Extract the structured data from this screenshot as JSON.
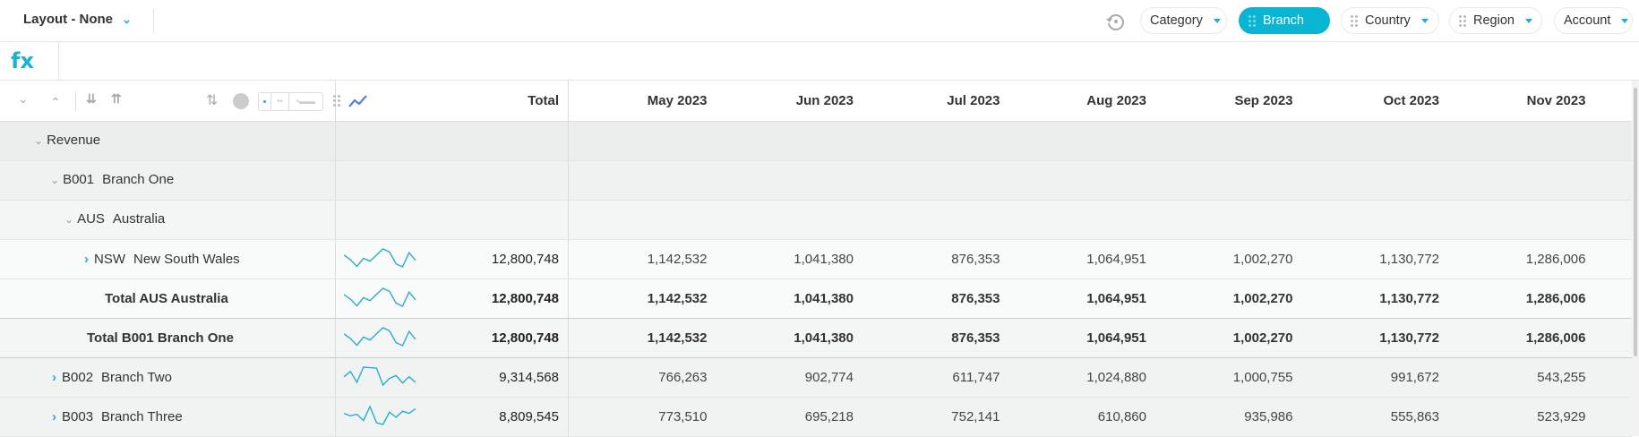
{
  "toolbar": {
    "layout_label": "Layout - None",
    "filters": [
      {
        "label": "Category",
        "active": false,
        "draggable": false
      },
      {
        "label": "Branch",
        "active": true,
        "draggable": true
      },
      {
        "label": "Country",
        "active": false,
        "draggable": true
      },
      {
        "label": "Region",
        "active": false,
        "draggable": true
      },
      {
        "label": "Account",
        "active": false,
        "draggable": false
      }
    ]
  },
  "formula_bar": {
    "icon": "fx",
    "value": ""
  },
  "colors": {
    "accent": "#0ab4d3",
    "sparkline": "#2aaccc"
  },
  "grid": {
    "header": {
      "total": "Total",
      "months": [
        "May 2023",
        "Jun 2023",
        "Jul 2023",
        "Aug 2023",
        "Sep 2023",
        "Oct 2023",
        "Nov 2023"
      ]
    },
    "rows": [
      {
        "code": "",
        "name": "Revenue",
        "type": "group",
        "expanded": true,
        "indent": 0
      },
      {
        "code": "B001",
        "name": "Branch One",
        "type": "group",
        "expanded": true,
        "indent": 1
      },
      {
        "code": "AUS",
        "name": "Australia",
        "type": "group",
        "expanded": true,
        "indent": 2
      },
      {
        "code": "NSW",
        "name": "New South Wales",
        "type": "leaf",
        "expanded": false,
        "indent": 3,
        "total": "12,800,748",
        "values": [
          "1,142,532",
          "1,041,380",
          "876,353",
          "1,064,951",
          "1,002,270",
          "1,130,772",
          "1,286,006"
        ],
        "sparkline": [
          0.66,
          0.4,
          0.02,
          0.48,
          0.31,
          0.66,
          1,
          0.83,
          0.17,
          0,
          0.79,
          0.36
        ]
      },
      {
        "name": "Total AUS Australia",
        "type": "total",
        "indent": 3,
        "total": "12,800,748",
        "values": [
          "1,142,532",
          "1,041,380",
          "876,353",
          "1,064,951",
          "1,002,270",
          "1,130,772",
          "1,286,006"
        ],
        "sparkline": [
          0.66,
          0.4,
          0.02,
          0.48,
          0.31,
          0.66,
          1,
          0.83,
          0.17,
          0,
          0.79,
          0.36
        ]
      },
      {
        "name": "Total B001 Branch One",
        "type": "total",
        "indent": 2,
        "total": "12,800,748",
        "values": [
          "1,142,532",
          "1,041,380",
          "876,353",
          "1,064,951",
          "1,002,270",
          "1,130,772",
          "1,286,006"
        ],
        "sparkline": [
          0.66,
          0.4,
          0.02,
          0.48,
          0.31,
          0.66,
          1,
          0.83,
          0.17,
          0,
          0.79,
          0.36
        ]
      },
      {
        "code": "B002",
        "name": "Branch Two",
        "type": "leaf",
        "expanded": false,
        "indent": 1,
        "total": "9,314,568",
        "values": [
          "766,263",
          "902,774",
          "611,747",
          "1,024,880",
          "1,000,755",
          "991,672",
          "543,255"
        ],
        "sparkline": [
          0.46,
          0.76,
          0.15,
          1,
          0.97,
          0.95,
          0,
          0.37,
          0.53,
          0.12,
          0.46,
          0.15
        ]
      },
      {
        "code": "B003",
        "name": "Branch Three",
        "type": "leaf",
        "expanded": false,
        "indent": 1,
        "total": "8,809,545",
        "values": [
          "773,510",
          "695,218",
          "752,141",
          "610,860",
          "935,986",
          "555,863",
          "523,929"
        ],
        "sparkline": [
          0.62,
          0.48,
          0.57,
          0.22,
          1,
          0.1,
          0,
          0.69,
          0.4,
          0.74,
          0.62,
          0.88
        ]
      }
    ]
  }
}
